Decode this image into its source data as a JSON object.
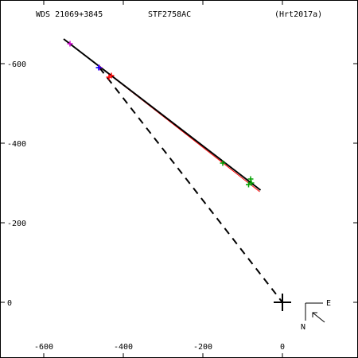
{
  "header": {
    "wds": "WDS 21069+3845",
    "name": "STF2758AC",
    "ref": "(Hrt2017a)"
  },
  "compass": {
    "east": "E",
    "north": "N"
  },
  "chart_data": {
    "type": "scatter",
    "x_ticks": [
      -600,
      -400,
      -200,
      0
    ],
    "y_ticks": [
      600,
      400,
      200,
      0
    ],
    "x_tick_labels": [
      "-600",
      "-400",
      "-200",
      "0"
    ],
    "y_tick_labels": [
      "-600",
      "-400",
      "-200",
      "0"
    ],
    "xlim": [
      -710,
      190
    ],
    "ylim": [
      -140,
      760
    ],
    "fit_line_black": [
      [
        -550,
        662
      ],
      [
        -55,
        282
      ]
    ],
    "fit_line_red": [
      [
        -548,
        661
      ],
      [
        -57,
        278
      ]
    ],
    "dashed_line": [
      [
        -460,
        590
      ],
      [
        0,
        0
      ]
    ],
    "primary_marker": [
      0,
      0
    ],
    "points_green": [
      [
        -80,
        310
      ],
      [
        -78,
        300
      ],
      [
        -85,
        296
      ],
      [
        -150,
        350
      ]
    ],
    "points_red": [
      [
        -430,
        570
      ],
      [
        -436,
        566
      ]
    ],
    "points_magenta": [
      [
        -534,
        650
      ],
      [
        -460,
        590
      ]
    ],
    "points_blue": [
      [
        -462,
        590
      ]
    ],
    "colors": {
      "green": "#00a000",
      "red": "#ff0000",
      "magenta": "#cc00cc",
      "blue": "#0000ff",
      "ink": "#000000"
    }
  }
}
